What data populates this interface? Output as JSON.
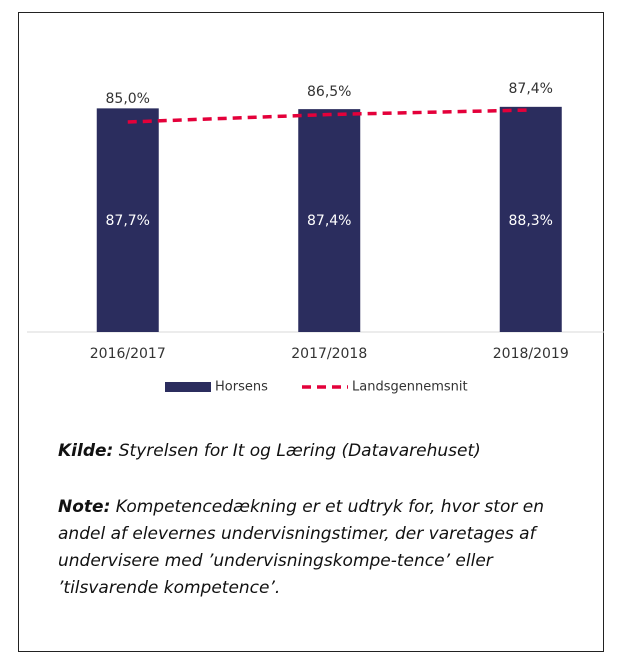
{
  "chart_data": {
    "type": "bar_line",
    "categories": [
      "2016/2017",
      "2017/2018",
      "2018/2019"
    ],
    "series": [
      {
        "name": "Horsens",
        "type": "bar",
        "color": "#2b2d5e",
        "values": [
          87.7,
          87.4,
          88.3
        ],
        "value_labels": [
          "87,7%",
          "87,4%",
          "88,3%"
        ]
      },
      {
        "name": "Landsgennemsnit",
        "type": "line",
        "axis": "y2",
        "color": "#e4003a",
        "values": [
          85.0,
          86.5,
          87.4
        ],
        "value_labels": [
          "85,0%",
          "86,5%",
          "87,4%"
        ]
      }
    ],
    "ylim": [
      0,
      100
    ],
    "y2lim": [
      43,
      94
    ],
    "legend": "bottom"
  },
  "source": {
    "label": "Kilde:",
    "text": "Styrelsen for It og Læring (Datavarehuset)"
  },
  "note": {
    "label": "Note:",
    "text": "Kompetencedækning er et udtryk for, hvor stor en andel af elevernes undervisningstimer, der varetages af undervisere med ’undervisningskompe-tence’ eller ’tilsvarende kompetence’."
  }
}
